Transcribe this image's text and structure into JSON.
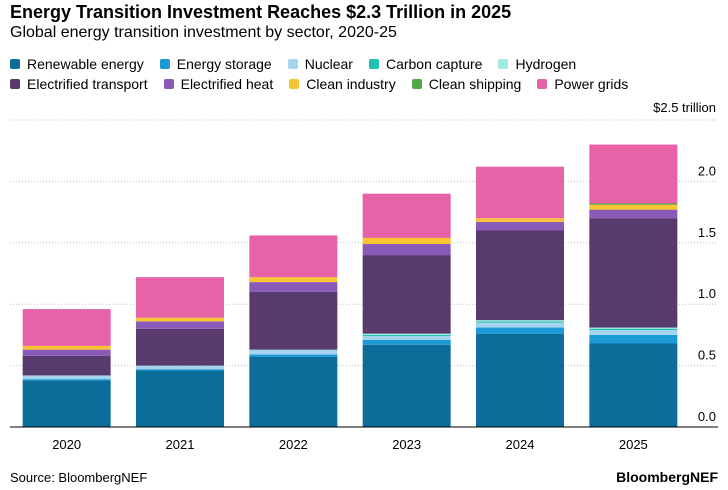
{
  "title": "Energy Transition Investment Reaches $2.3 Trillion in 2025",
  "subtitle": "Global energy transition investment by sector, 2020-25",
  "source": "Source: BloombergNEF",
  "brand": "BloombergNEF",
  "chart_data": {
    "type": "bar",
    "stacked": true,
    "title": "Energy Transition Investment Reaches $2.3 Trillion in 2025",
    "xlabel": "",
    "ylabel": "",
    "unit_label": "$2.5 trillion",
    "ylim": [
      0,
      2.5
    ],
    "y_ticks": [
      0.0,
      0.5,
      1.0,
      1.5,
      2.0
    ],
    "y_tick_labels": [
      "0.0",
      "0.5",
      "1.0",
      "1.5",
      "2.0"
    ],
    "categories": [
      "2020",
      "2021",
      "2022",
      "2023",
      "2024",
      "2025"
    ],
    "legend_position": "top-left",
    "series": [
      {
        "name": "Renewable energy",
        "color": "#0a6e98",
        "values": [
          0.38,
          0.46,
          0.57,
          0.67,
          0.76,
          0.68
        ]
      },
      {
        "name": "Energy storage",
        "color": "#1b9ad8",
        "values": [
          0.01,
          0.01,
          0.02,
          0.04,
          0.05,
          0.07
        ]
      },
      {
        "name": "Nuclear",
        "color": "#a6d4ee",
        "values": [
          0.03,
          0.03,
          0.04,
          0.03,
          0.04,
          0.04
        ]
      },
      {
        "name": "Carbon capture",
        "color": "#1cc4b0",
        "values": [
          0.0,
          0.0,
          0.0,
          0.01,
          0.01,
          0.01
        ]
      },
      {
        "name": "Hydrogen",
        "color": "#a3eae4",
        "values": [
          0.0,
          0.0,
          0.0,
          0.01,
          0.01,
          0.01
        ]
      },
      {
        "name": "Electrified transport",
        "color": "#583a6e",
        "values": [
          0.16,
          0.3,
          0.47,
          0.64,
          0.73,
          0.89
        ]
      },
      {
        "name": "Electrified heat",
        "color": "#8a5ab8",
        "values": [
          0.05,
          0.06,
          0.08,
          0.09,
          0.07,
          0.07
        ]
      },
      {
        "name": "Clean industry",
        "color": "#f8c532",
        "values": [
          0.03,
          0.03,
          0.04,
          0.05,
          0.03,
          0.04
        ]
      },
      {
        "name": "Clean shipping",
        "color": "#50a848",
        "values": [
          0.0,
          0.0,
          0.0,
          0.0,
          0.0,
          0.01
        ]
      },
      {
        "name": "Power grids",
        "color": "#e862a8",
        "values": [
          0.3,
          0.33,
          0.34,
          0.36,
          0.42,
          0.48
        ]
      }
    ]
  }
}
